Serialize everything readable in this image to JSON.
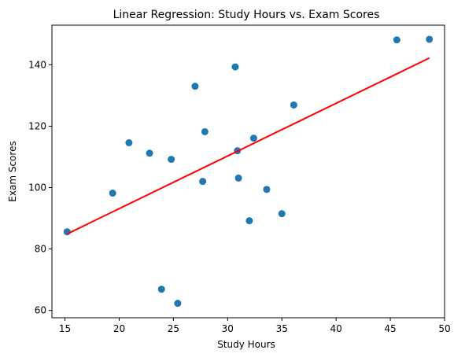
{
  "chart_data": {
    "type": "scatter",
    "title": "Linear Regression: Study Hours vs. Exam Scores",
    "xlabel": "Study Hours",
    "ylabel": "Exam Scores",
    "xlim": [
      13.8,
      50.0
    ],
    "ylim": [
      57.6,
      152.9
    ],
    "xticks": [
      15,
      20,
      25,
      30,
      35,
      40,
      45,
      50
    ],
    "yticks": [
      60,
      80,
      100,
      120,
      140
    ],
    "grid": false,
    "points": [
      {
        "x": 15.2,
        "y": 85.6
      },
      {
        "x": 19.4,
        "y": 98.2
      },
      {
        "x": 20.9,
        "y": 114.6
      },
      {
        "x": 22.8,
        "y": 111.2
      },
      {
        "x": 23.9,
        "y": 66.9
      },
      {
        "x": 24.8,
        "y": 109.2
      },
      {
        "x": 25.4,
        "y": 62.3
      },
      {
        "x": 27.0,
        "y": 133.0
      },
      {
        "x": 27.7,
        "y": 102.0
      },
      {
        "x": 27.9,
        "y": 118.2
      },
      {
        "x": 30.7,
        "y": 139.3
      },
      {
        "x": 30.9,
        "y": 112.0
      },
      {
        "x": 31.0,
        "y": 103.1
      },
      {
        "x": 32.0,
        "y": 89.2
      },
      {
        "x": 32.4,
        "y": 116.1
      },
      {
        "x": 33.6,
        "y": 99.4
      },
      {
        "x": 35.0,
        "y": 91.5
      },
      {
        "x": 36.1,
        "y": 126.9
      },
      {
        "x": 45.6,
        "y": 148.1
      },
      {
        "x": 48.6,
        "y": 148.3
      }
    ],
    "regression_line": {
      "x": [
        15.2,
        48.6
      ],
      "y": [
        84.9,
        142.2
      ]
    },
    "colors": {
      "points": "#1f77b4",
      "line": "#ff0000",
      "axes": "#000000"
    }
  }
}
